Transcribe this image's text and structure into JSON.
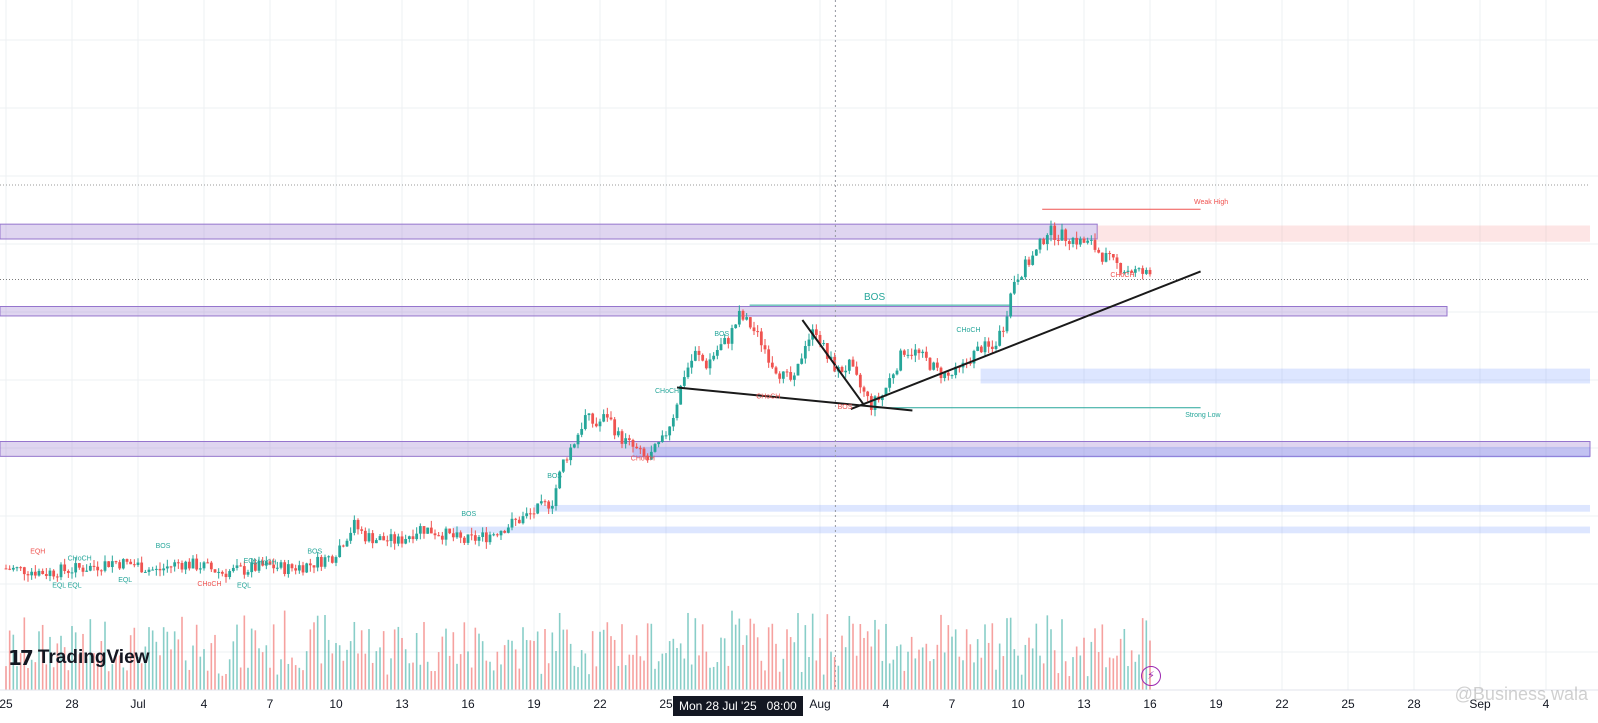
{
  "chart_data": {
    "type": "candlestick",
    "branding": {
      "logo_text": "TradingView"
    },
    "watermark": "@Business wala",
    "crosshair": {
      "label": "Mon 28 Jul '25   08:00",
      "x_day": 37.7
    },
    "x_ticks": [
      {
        "d": 0,
        "label": "25"
      },
      {
        "d": 3,
        "label": "28"
      },
      {
        "d": 6,
        "label": "Jul"
      },
      {
        "d": 9,
        "label": "4"
      },
      {
        "d": 12,
        "label": "7"
      },
      {
        "d": 15,
        "label": "10"
      },
      {
        "d": 18,
        "label": "13"
      },
      {
        "d": 21,
        "label": "16"
      },
      {
        "d": 24,
        "label": "19"
      },
      {
        "d": 27,
        "label": "22"
      },
      {
        "d": 30,
        "label": "25"
      },
      {
        "d": 37,
        "label": "Aug"
      },
      {
        "d": 40,
        "label": "4"
      },
      {
        "d": 43,
        "label": "7"
      },
      {
        "d": 46,
        "label": "10"
      },
      {
        "d": 49,
        "label": "13"
      },
      {
        "d": 52,
        "label": "16"
      },
      {
        "d": 55,
        "label": "19"
      },
      {
        "d": 58,
        "label": "22"
      },
      {
        "d": 61,
        "label": "25"
      },
      {
        "d": 64,
        "label": "28"
      },
      {
        "d": 67,
        "label": "Sep"
      },
      {
        "d": 70,
        "label": "4"
      }
    ],
    "price_path": [
      [
        0.0,
        0.16
      ],
      [
        1.0,
        0.15
      ],
      [
        2.0,
        0.13
      ],
      [
        3.0,
        0.15
      ],
      [
        4.0,
        0.17
      ],
      [
        5.0,
        0.21
      ],
      [
        6.0,
        0.19
      ],
      [
        7.0,
        0.14
      ],
      [
        8.0,
        0.2
      ],
      [
        9.0,
        0.18
      ],
      [
        10.0,
        0.13
      ],
      [
        11.0,
        0.15
      ],
      [
        12.0,
        0.18
      ],
      [
        13.0,
        0.16
      ],
      [
        14.0,
        0.19
      ],
      [
        15.0,
        0.25
      ],
      [
        16.0,
        0.48
      ],
      [
        16.5,
        0.4
      ],
      [
        17.0,
        0.38
      ],
      [
        18.0,
        0.36
      ],
      [
        19.0,
        0.46
      ],
      [
        20.0,
        0.42
      ],
      [
        21.0,
        0.36
      ],
      [
        22.0,
        0.4
      ],
      [
        23.0,
        0.48
      ],
      [
        24.0,
        0.56
      ],
      [
        25.0,
        0.66
      ],
      [
        25.5,
        0.95
      ],
      [
        26.0,
        1.1
      ],
      [
        26.5,
        1.28
      ],
      [
        27.0,
        1.22
      ],
      [
        27.5,
        1.3
      ],
      [
        28.0,
        1.14
      ],
      [
        28.7,
        1.05
      ],
      [
        29.3,
        0.96
      ],
      [
        30.0,
        1.1
      ],
      [
        30.5,
        1.3
      ],
      [
        31.0,
        1.6
      ],
      [
        31.5,
        1.75
      ],
      [
        32.0,
        1.67
      ],
      [
        32.5,
        1.78
      ],
      [
        33.0,
        1.86
      ],
      [
        33.5,
        2.03
      ],
      [
        34.0,
        1.96
      ],
      [
        34.5,
        1.84
      ],
      [
        35.0,
        1.68
      ],
      [
        35.5,
        1.58
      ],
      [
        36.0,
        1.54
      ],
      [
        36.5,
        1.84
      ],
      [
        37.0,
        1.93
      ],
      [
        37.5,
        1.72
      ],
      [
        38.0,
        1.62
      ],
      [
        38.5,
        1.66
      ],
      [
        39.0,
        1.5
      ],
      [
        39.5,
        1.37
      ],
      [
        40.0,
        1.44
      ],
      [
        40.5,
        1.62
      ],
      [
        41.0,
        1.78
      ],
      [
        41.5,
        1.76
      ],
      [
        42.0,
        1.7
      ],
      [
        42.5,
        1.62
      ],
      [
        43.0,
        1.58
      ],
      [
        43.5,
        1.62
      ],
      [
        44.0,
        1.72
      ],
      [
        44.5,
        1.8
      ],
      [
        45.0,
        1.78
      ],
      [
        45.5,
        1.96
      ],
      [
        46.0,
        2.3
      ],
      [
        46.5,
        2.4
      ],
      [
        47.0,
        2.5
      ],
      [
        47.5,
        2.66
      ],
      [
        48.0,
        2.63
      ],
      [
        48.5,
        2.61
      ],
      [
        49.0,
        2.58
      ],
      [
        49.5,
        2.56
      ],
      [
        50.0,
        2.48
      ],
      [
        50.5,
        2.42
      ],
      [
        51.0,
        2.38
      ],
      [
        51.5,
        2.36
      ],
      [
        52.0,
        2.34
      ]
    ],
    "volume_bars": 1,
    "zones": [
      {
        "kind": "supply",
        "label": "",
        "y": [
          2.6,
          2.71
        ],
        "x": [
          -2,
          49.6
        ]
      },
      {
        "kind": "supply",
        "label": "",
        "y": [
          2.03,
          2.1
        ],
        "x": [
          -2,
          65.5
        ]
      },
      {
        "kind": "supply",
        "label": "",
        "y": [
          0.99,
          1.1
        ],
        "x": [
          -2,
          72
        ]
      },
      {
        "kind": "weak-high-zone",
        "label": "",
        "y": [
          2.58,
          2.7
        ],
        "x": [
          49.6,
          72
        ]
      },
      {
        "kind": "demand",
        "label": "",
        "y": [
          1.53,
          1.64
        ],
        "x": [
          44.3,
          72
        ]
      },
      {
        "kind": "demand",
        "label": "",
        "y": [
          0.98,
          1.06
        ],
        "x": [
          28.5,
          72
        ]
      },
      {
        "kind": "demand",
        "label": "",
        "y": [
          0.58,
          0.63
        ],
        "x": [
          24.0,
          72
        ]
      },
      {
        "kind": "demand",
        "label": "",
        "y": [
          0.42,
          0.47
        ],
        "x": [
          20.3,
          72
        ]
      }
    ],
    "trendlines": [
      {
        "name": "falling-wedge-lower",
        "from": [
          30.5,
          1.5
        ],
        "to": [
          41.2,
          1.33
        ]
      },
      {
        "name": "falling-wedge-upper",
        "from": [
          36.2,
          2.0
        ],
        "to": [
          39.0,
          1.37
        ]
      },
      {
        "name": "rising-support",
        "from": [
          38.4,
          1.34
        ],
        "to": [
          54.3,
          2.36
        ]
      }
    ],
    "horizontal_levels": [
      {
        "name": "bos-line",
        "y": 2.11,
        "x": [
          33.8,
          45.7
        ],
        "color": "#26a69a"
      },
      {
        "name": "weak-high-line",
        "y": 2.82,
        "x": [
          47.1,
          54.3
        ],
        "color": "#ef5350"
      },
      {
        "name": "strong-low-line",
        "y": 1.35,
        "x": [
          39.5,
          54.3
        ],
        "color": "#26a69a"
      },
      {
        "name": "last-price",
        "y": 2.3,
        "x": [
          -2,
          72
        ],
        "color": "#7a7a7a"
      },
      {
        "name": "upper-dotted",
        "y": 3.0,
        "x": [
          -2,
          72
        ],
        "color": "#9a9a9a"
      }
    ],
    "annotations": {
      "weak_high": "Weak High",
      "strong_low": "Strong Low",
      "bos_main": "BOS",
      "labels": [
        {
          "t": "EQH",
          "x": 1.1,
          "y": 0.27,
          "c": "#ef5350"
        },
        {
          "t": "CHoCH",
          "x": 2.8,
          "y": 0.22,
          "c": "#26a69a"
        },
        {
          "t": "EQL",
          "x": 2.1,
          "y": 0.02,
          "c": "#26a69a"
        },
        {
          "t": "EQL",
          "x": 2.8,
          "y": 0.02,
          "c": "#26a69a"
        },
        {
          "t": "BOS",
          "x": 6.8,
          "y": 0.31,
          "c": "#26a69a"
        },
        {
          "t": "EQL",
          "x": 5.1,
          "y": 0.06,
          "c": "#26a69a"
        },
        {
          "t": "CHoCH",
          "x": 8.7,
          "y": 0.03,
          "c": "#ef5350"
        },
        {
          "t": "EQL",
          "x": 10.5,
          "y": 0.02,
          "c": "#26a69a"
        },
        {
          "t": "EQL",
          "x": 10.8,
          "y": 0.2,
          "c": "#26a69a"
        },
        {
          "t": "CHoCH",
          "x": 11.2,
          "y": 0.19,
          "c": "#26a69a"
        },
        {
          "t": "BOS",
          "x": 13.7,
          "y": 0.27,
          "c": "#26a69a"
        },
        {
          "t": "BOS",
          "x": 20.7,
          "y": 0.55,
          "c": "#26a69a"
        },
        {
          "t": "BOS",
          "x": 24.6,
          "y": 0.83,
          "c": "#26a69a"
        },
        {
          "t": "CHoCH",
          "x": 28.4,
          "y": 0.96,
          "c": "#ef5350"
        },
        {
          "t": "CHoCH",
          "x": 29.5,
          "y": 1.46,
          "c": "#26a69a"
        },
        {
          "t": "BOS",
          "x": 32.2,
          "y": 1.88,
          "c": "#26a69a"
        },
        {
          "t": "CHoCH",
          "x": 34.1,
          "y": 1.42,
          "c": "#ef5350"
        },
        {
          "t": "BOS",
          "x": 37.8,
          "y": 1.34,
          "c": "#ef5350"
        },
        {
          "t": "CHoCH",
          "x": 43.2,
          "y": 1.91,
          "c": "#26a69a"
        },
        {
          "t": "CHoCH",
          "x": 50.2,
          "y": 2.32,
          "c": "#ef5350"
        }
      ]
    },
    "colors": {
      "up": "#26a69a",
      "down": "#ef5350",
      "supply": "#9575cd",
      "demand": "#2962ff",
      "weak_zone": "#f8bbbb",
      "trend": "#1a1a1a",
      "grid": "#eef0f3"
    }
  }
}
